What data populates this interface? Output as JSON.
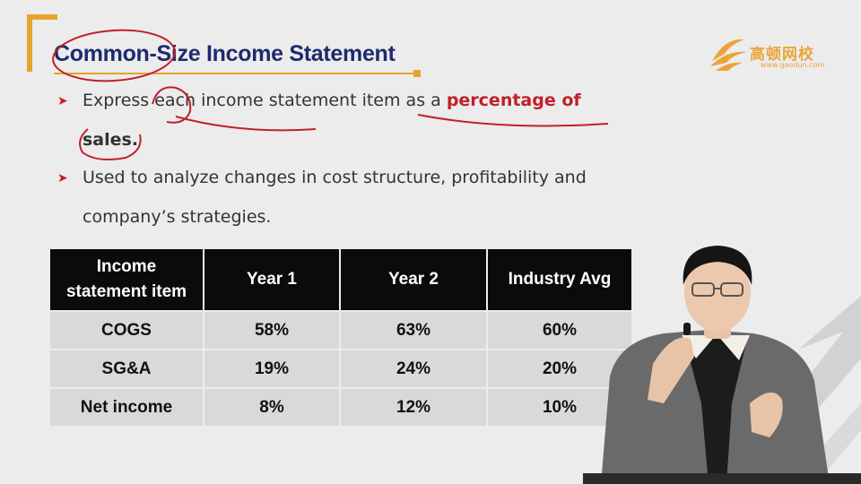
{
  "slide": {
    "title": "Common-Size Income Statement",
    "logo": {
      "name": "高顿网校",
      "url": "www.gaodun.com"
    },
    "bullets": [
      {
        "pre": "Express each income statement item as a ",
        "emphasis": "percentage of",
        "cont": "sales."
      },
      {
        "text": "Used to analyze changes in cost structure, profitability and",
        "cont": "company’s strategies."
      }
    ],
    "table": {
      "headers": [
        "Income\nstatement item",
        "Year 1",
        "Year 2",
        "Industry Avg"
      ],
      "rows": [
        [
          "COGS",
          "58%",
          "63%",
          "60%"
        ],
        [
          "SG&A",
          "19%",
          "24%",
          "20%"
        ],
        [
          "Net income",
          "8%",
          "12%",
          "10%"
        ]
      ]
    }
  },
  "colors": {
    "title": "#1e2a6e",
    "accent_gold": "#e4a52a",
    "emphasis_red": "#c0202a",
    "table_header_bg": "#0b0b0b",
    "table_cell_bg": "#d9d9d9"
  },
  "icons": [
    "bullet-arrow-icon",
    "gaodun-logo-icon"
  ]
}
